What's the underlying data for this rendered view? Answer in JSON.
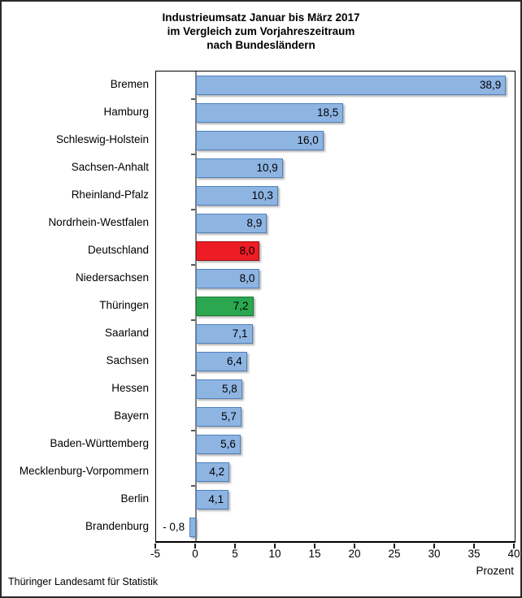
{
  "title": {
    "line1": "Industrieumsatz Januar bis März 2017",
    "line2": "im Vergleich zum Vorjahreszeitraum",
    "line3": "nach Bundesländern"
  },
  "footer": "Thüringer Landesamt für Statistik",
  "chart_data": {
    "type": "bar",
    "orientation": "horizontal",
    "title": "Industrieumsatz Januar bis März 2017 im Vergleich zum Vorjahreszeitraum nach Bundesländern",
    "xlabel": "Prozent",
    "xlim": [
      -5,
      40
    ],
    "x_ticks": [
      -5,
      0,
      5,
      10,
      15,
      20,
      25,
      30,
      35,
      40
    ],
    "grid": false,
    "legend": "none",
    "categories": [
      "Bremen",
      "Hamburg",
      "Schleswig-Holstein",
      "Sachsen-Anhalt",
      "Rheinland-Pfalz",
      "Nordrhein-Westfalen",
      "Deutschland",
      "Niedersachsen",
      "Thüringen",
      "Saarland",
      "Sachsen",
      "Hessen",
      "Bayern",
      "Baden-Württemberg",
      "Mecklenburg-Vorpommern",
      "Berlin",
      "Brandenburg"
    ],
    "values": [
      38.9,
      18.5,
      16.0,
      10.9,
      10.3,
      8.9,
      8.0,
      8.0,
      7.2,
      7.1,
      6.4,
      5.8,
      5.7,
      5.6,
      4.2,
      4.1,
      -0.8
    ],
    "value_labels": [
      "38,9",
      "18,5",
      "16,0",
      "10,9",
      "10,3",
      "8,9",
      "8,0",
      "8,0",
      "7,2",
      "7,1",
      "6,4",
      "5,8",
      "5,7",
      "5,6",
      "4,2",
      "4,1",
      "- 0,8"
    ],
    "highlights": {
      "red_index": 6,
      "green_index": 8
    },
    "colors": {
      "bar_fill": "#8EB4E2",
      "bar_border": "#4F81BD",
      "red_fill": "#EE1C25",
      "red_border": "#9B0D12",
      "green_fill": "#2BA84F",
      "green_border": "#1B7A36",
      "axis_zero_line": "#808080",
      "plot_border": "#000000"
    }
  }
}
